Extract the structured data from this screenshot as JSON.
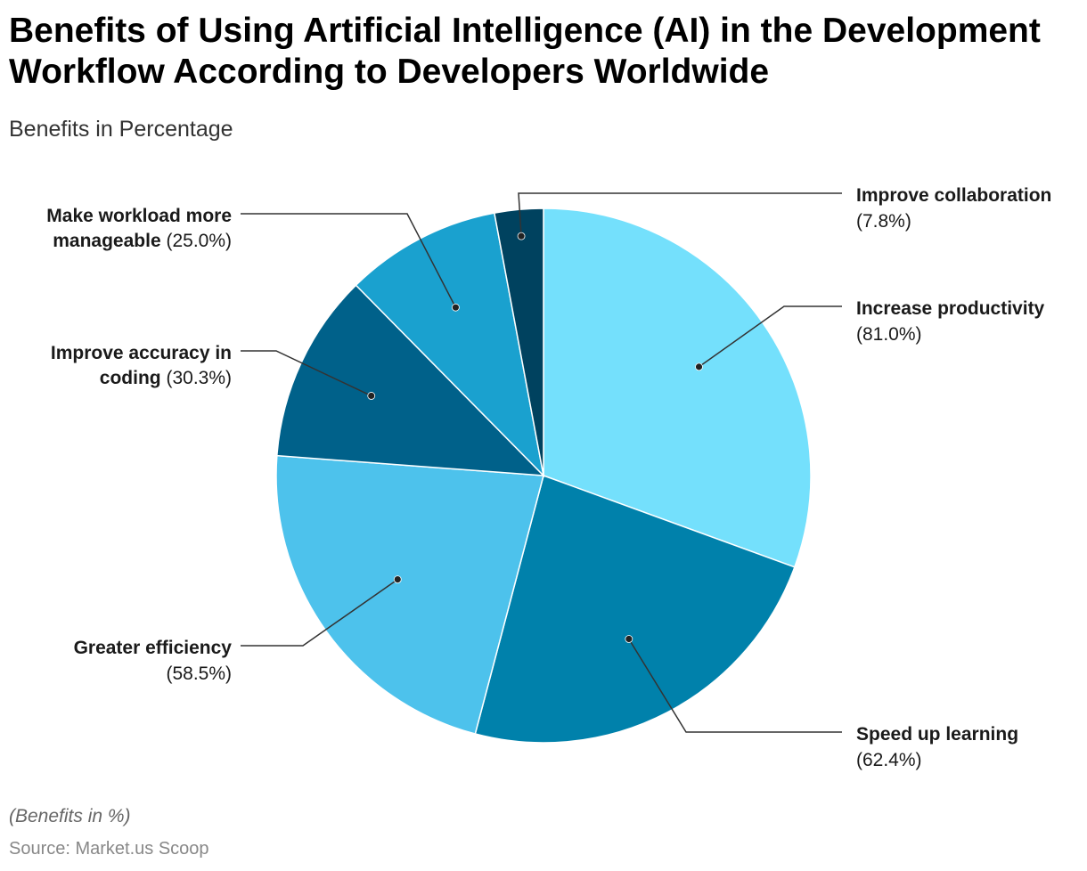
{
  "title": "Benefits of Using Artificial Intelligence (AI) in the Development Workflow According to Developers Worldwide",
  "subtitle": "Benefits in Percentage",
  "note": "(Benefits in %)",
  "source": "Source: Market.us Scoop",
  "colors": {
    "increase_productivity": "#74e0fc",
    "speed_up_learning": "#0081ab",
    "greater_efficiency": "#4dc2ec",
    "improve_accuracy": "#00618a",
    "make_workload": "#1aa1cf",
    "improve_collaboration": "#00425f"
  },
  "chart_data": {
    "type": "pie",
    "title": "Benefits of Using Artificial Intelligence (AI) in the Development Workflow According to Developers Worldwide",
    "subtitle": "Benefits in Percentage",
    "categories": [
      "Increase productivity",
      "Speed up learning",
      "Greater efficiency",
      "Improve accuracy in coding",
      "Make workload more manageable",
      "Improve collaboration"
    ],
    "values": [
      81.0,
      62.4,
      58.5,
      30.3,
      25.0,
      7.8
    ],
    "value_labels": [
      "(81.0%)",
      "(62.4%)",
      "(58.5%)",
      "(30.3%)",
      "(25.0%)",
      "(7.8%)"
    ],
    "label_lines": [
      [
        "Increase productivity"
      ],
      [
        "Speed up learning"
      ],
      [
        "Greater efficiency"
      ],
      [
        "Improve accuracy in",
        "coding"
      ],
      [
        "Make workload more",
        "manageable"
      ],
      [
        "Improve collaboration"
      ]
    ],
    "label_sides": [
      "right",
      "right",
      "left",
      "left",
      "left",
      "right"
    ],
    "start_angle": "12 o'clock, clockwise",
    "legend": "none, labels outside slices"
  }
}
